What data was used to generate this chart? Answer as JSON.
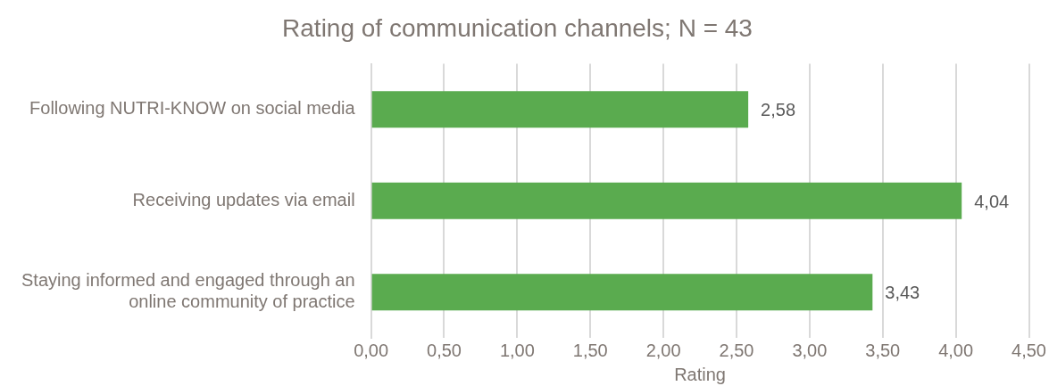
{
  "chart_data": {
    "type": "bar",
    "orientation": "horizontal",
    "title": "Rating of communication channels; N = 43",
    "xlabel": "Rating",
    "categories": [
      "Following NUTRI-KNOW on social media",
      "Receiving updates via email",
      "Staying informed and engaged through an online community of practice"
    ],
    "values": [
      2.58,
      4.04,
      3.43
    ],
    "color": "#5aab4f",
    "value_labels": [
      "2,58",
      "4,04",
      "3,43"
    ],
    "xlim": [
      0,
      4.5
    ],
    "xticks": [
      {
        "value": 0,
        "label": "0,00"
      },
      {
        "value": 0.5,
        "label": "0,50"
      },
      {
        "value": 1,
        "label": "1,00"
      },
      {
        "value": 1.5,
        "label": "1,50"
      },
      {
        "value": 2,
        "label": "2,00"
      },
      {
        "value": 2.5,
        "label": "2,50"
      },
      {
        "value": 3,
        "label": "3,00"
      },
      {
        "value": 3.5,
        "label": "3,50"
      },
      {
        "value": 4,
        "label": "4,00"
      },
      {
        "value": 4.5,
        "label": "4,50"
      }
    ],
    "grid": "x",
    "legend": false
  }
}
